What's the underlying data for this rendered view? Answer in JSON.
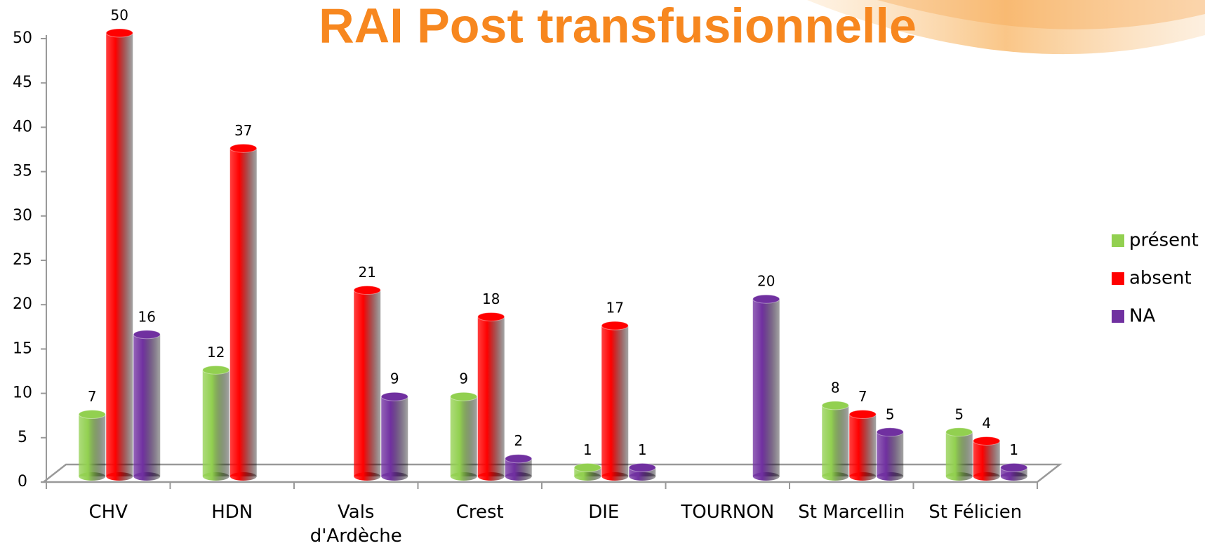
{
  "chart_data": {
    "type": "bar3d",
    "title": "RAI Post transfusionnelle",
    "categories": [
      "CHV",
      "HDN",
      "Vals\nd'Ardèche",
      "Crest",
      "DIE",
      "TOURNON",
      "St Marcellin",
      "St Félicien"
    ],
    "series": [
      {
        "name": "présent",
        "color": "#92d050",
        "values": [
          7,
          12,
          null,
          9,
          1,
          null,
          8,
          5
        ]
      },
      {
        "name": "absent",
        "color": "#ff0000",
        "values": [
          50,
          37,
          21,
          18,
          17,
          null,
          7,
          4
        ]
      },
      {
        "name": "NA",
        "color": "#7030a0",
        "values": [
          16,
          null,
          9,
          2,
          1,
          20,
          5,
          1
        ]
      }
    ],
    "ylim": [
      0,
      50
    ],
    "yticks": [
      0,
      5,
      10,
      15,
      20,
      25,
      30,
      35,
      40,
      45,
      50
    ],
    "legend": "right"
  }
}
